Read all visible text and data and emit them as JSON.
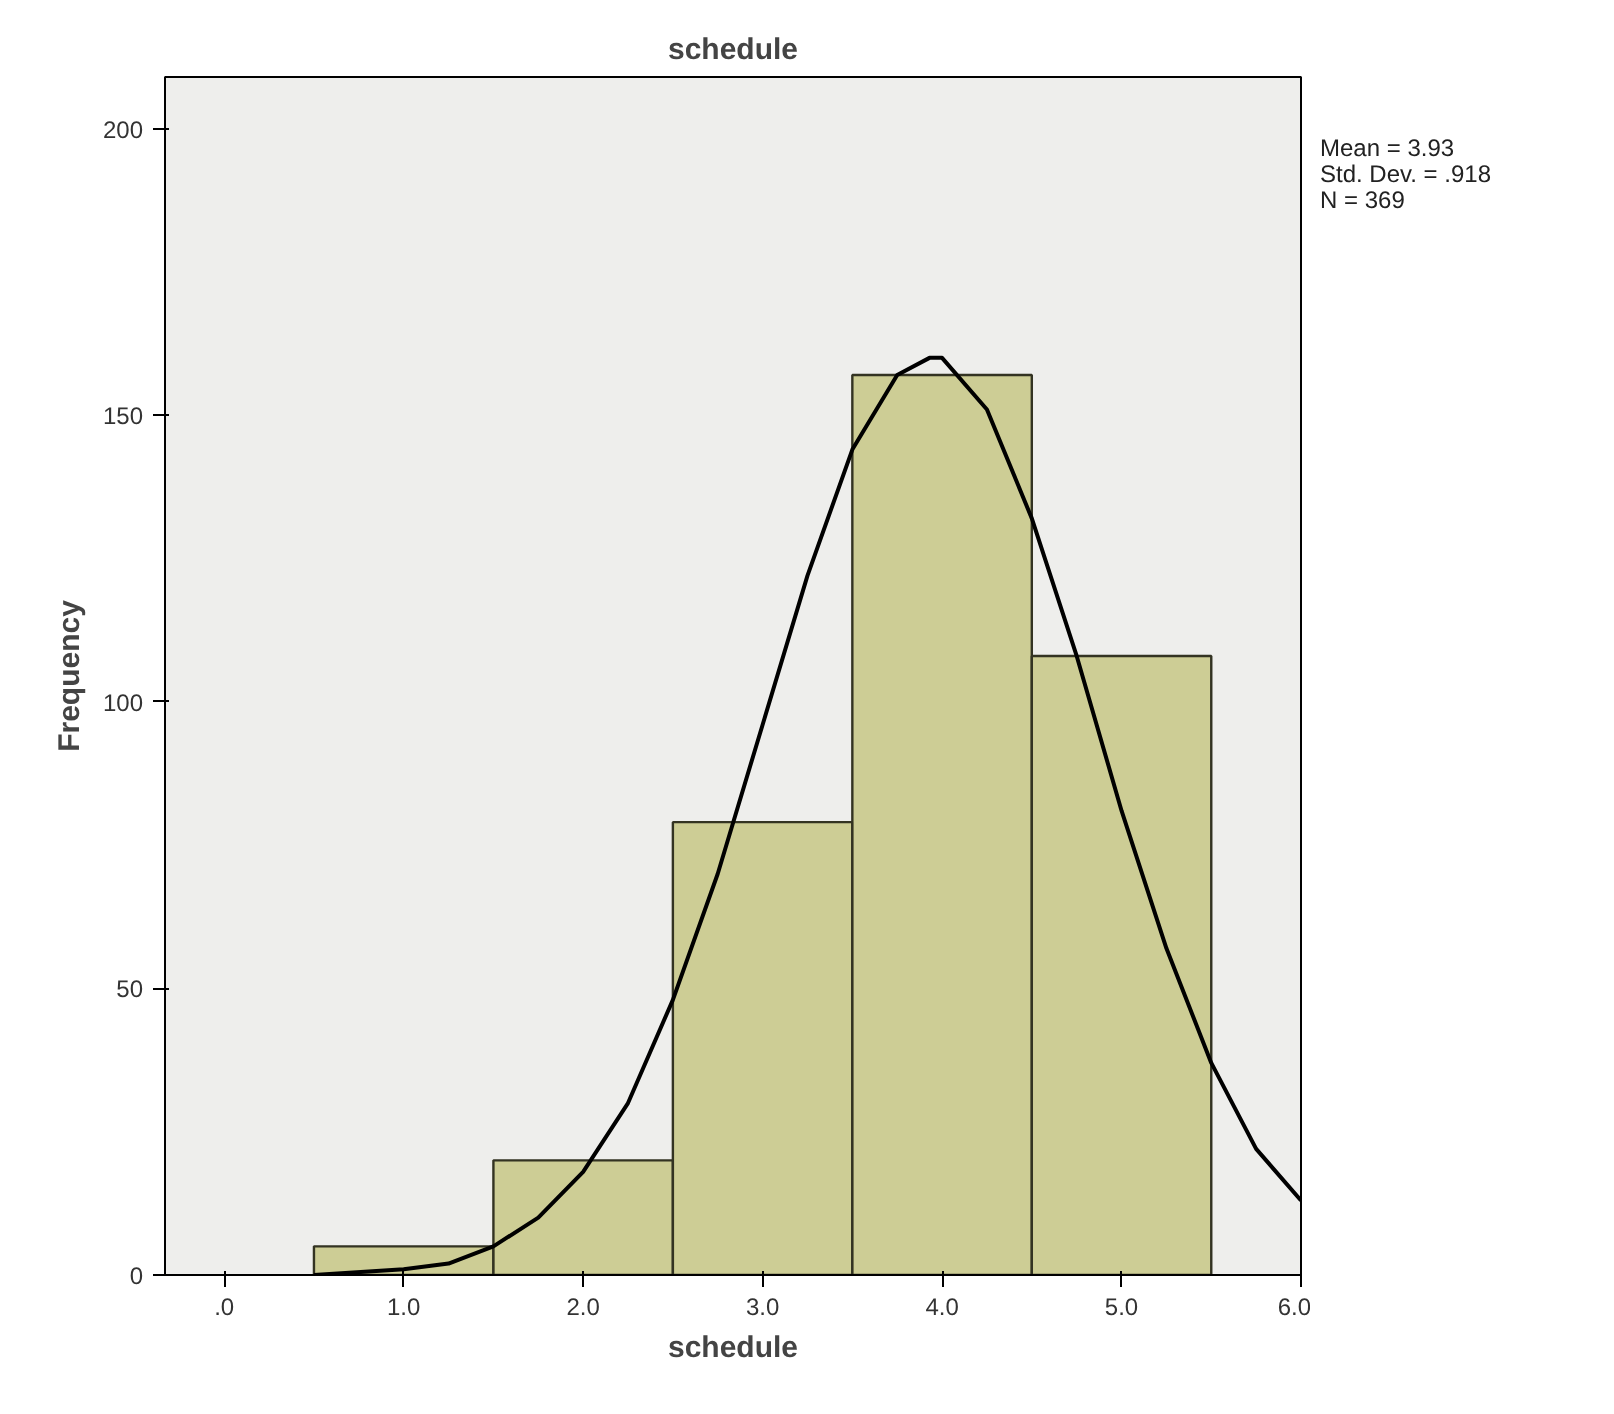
{
  "chart_data": {
    "type": "histogram",
    "title": "schedule",
    "xlabel": "schedule",
    "ylabel": "Frequency",
    "bins": [
      0.5,
      1.5,
      2.5,
      3.5,
      4.5,
      5.5
    ],
    "values": [
      5,
      20,
      79,
      157,
      108
    ],
    "color": "#c9c98c",
    "series": [
      {
        "type": "line",
        "color": "#000000",
        "x": [
          0.5,
          1.0,
          1.25,
          1.5,
          1.75,
          2.0,
          2.25,
          2.5,
          2.75,
          3.0,
          3.25,
          3.5,
          3.75,
          3.93,
          4.0,
          4.25,
          4.5,
          4.75,
          5.0,
          5.25,
          5.5,
          5.75,
          6.0
        ],
        "values": [
          0,
          1,
          2,
          5,
          10,
          18,
          30,
          48,
          70,
          96,
          122,
          144,
          157,
          160,
          160,
          151,
          132,
          108,
          81,
          57,
          37,
          22,
          13
        ]
      }
    ],
    "xlim": [
      -0.33,
      6.0
    ],
    "ylim": [
      0,
      209
    ],
    "xticks": [
      {
        "value": 0,
        "label": ".0"
      },
      {
        "value": 1,
        "label": "1.0"
      },
      {
        "value": 2,
        "label": "2.0"
      },
      {
        "value": 3,
        "label": "3.0"
      },
      {
        "value": 4,
        "label": "4.0"
      },
      {
        "value": 5,
        "label": "5.0"
      },
      {
        "value": 6,
        "label": "6.0"
      }
    ],
    "yticks": [
      0,
      50,
      100,
      150,
      200
    ],
    "annotations": [
      "Mean = 3.93",
      "Std. Dev. = .918",
      "N = 369"
    ],
    "grid": false
  }
}
